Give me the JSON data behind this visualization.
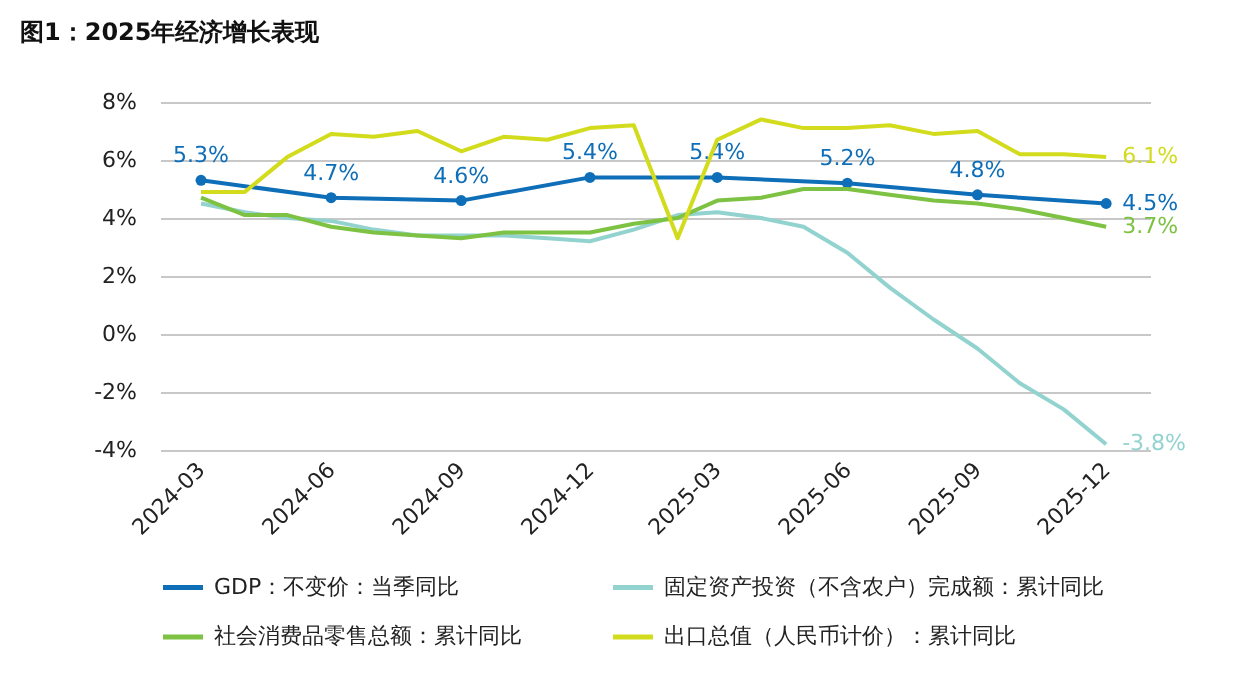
{
  "chart_data": {
    "type": "line",
    "title": "图1：2025年经济增长表现",
    "x": [
      "2024-03",
      "2024-04",
      "2024-05",
      "2024-06",
      "2024-07",
      "2024-08",
      "2024-09",
      "2024-10",
      "2024-11",
      "2024-12",
      "2025-01",
      "2025-02",
      "2025-03",
      "2025-04",
      "2025-05",
      "2025-06",
      "2025-07",
      "2025-08",
      "2025-09",
      "2025-10",
      "2025-11",
      "2025-12"
    ],
    "series": [
      {
        "name": "GDP：不变价：当季同比",
        "color": "#0e6eb8",
        "marker": "circle",
        "x": [
          "2024-03",
          "2024-06",
          "2024-09",
          "2024-12",
          "2025-03",
          "2025-06",
          "2025-09",
          "2025-12"
        ],
        "values": [
          5.3,
          4.7,
          4.6,
          5.4,
          5.4,
          5.2,
          4.8,
          4.5
        ],
        "value_labels": [
          "5.3%",
          "4.7%",
          "4.6%",
          "5.4%",
          "5.4%",
          "5.2%",
          "4.8%",
          "4.5%"
        ]
      },
      {
        "name": "固定资产投资（不含农户）完成额：累计同比",
        "color": "#92d3cf",
        "values": [
          4.5,
          4.2,
          4.0,
          3.9,
          3.6,
          3.4,
          3.4,
          3.4,
          3.3,
          3.2,
          3.6,
          4.1,
          4.2,
          4.0,
          3.7,
          2.8,
          1.6,
          0.5,
          -0.5,
          -1.7,
          -2.6,
          -3.8
        ],
        "value_labels": [
          null,
          null,
          null,
          null,
          null,
          null,
          null,
          null,
          null,
          null,
          null,
          null,
          null,
          null,
          null,
          null,
          null,
          null,
          null,
          null,
          null,
          "-3.8%"
        ]
      },
      {
        "name": "社会消费品零售总额：累计同比",
        "color": "#7dc242",
        "values": [
          4.7,
          4.1,
          4.1,
          3.7,
          3.5,
          3.4,
          3.3,
          3.5,
          3.5,
          3.5,
          3.8,
          4.0,
          4.6,
          4.7,
          5.0,
          5.0,
          4.8,
          4.6,
          4.5,
          4.3,
          4.0,
          3.7
        ],
        "value_labels": [
          null,
          null,
          null,
          null,
          null,
          null,
          null,
          null,
          null,
          null,
          null,
          null,
          null,
          null,
          null,
          null,
          null,
          null,
          null,
          null,
          null,
          "3.7%"
        ]
      },
      {
        "name": "出口总值（人民币计价）：累计同比",
        "color": "#d2db1c",
        "values": [
          4.9,
          4.9,
          6.1,
          6.9,
          6.8,
          7.0,
          6.3,
          6.8,
          6.7,
          7.1,
          7.2,
          3.3,
          6.7,
          7.4,
          7.1,
          7.1,
          7.2,
          6.9,
          7.0,
          6.2,
          6.2,
          6.1
        ],
        "value_labels": [
          null,
          null,
          null,
          null,
          null,
          null,
          null,
          null,
          null,
          null,
          null,
          null,
          null,
          null,
          null,
          null,
          null,
          null,
          null,
          null,
          null,
          "6.1%"
        ]
      }
    ],
    "xlim": [
      "2024-02",
      "2026-01"
    ],
    "xticks": [
      "2024-03",
      "2024-06",
      "2024-09",
      "2024-12",
      "2025-03",
      "2025-06",
      "2025-09",
      "2025-12"
    ],
    "ylim": [
      -4,
      8
    ],
    "yticks": [
      {
        "value": -4,
        "label": "-4%"
      },
      {
        "value": -2,
        "label": "-2%"
      },
      {
        "value": 0,
        "label": "0%"
      },
      {
        "value": 2,
        "label": "2%"
      },
      {
        "value": 4,
        "label": "4%"
      },
      {
        "value": 6,
        "label": "6%"
      },
      {
        "value": 8,
        "label": "8%"
      }
    ],
    "grid": "y",
    "legend": "bottom"
  }
}
